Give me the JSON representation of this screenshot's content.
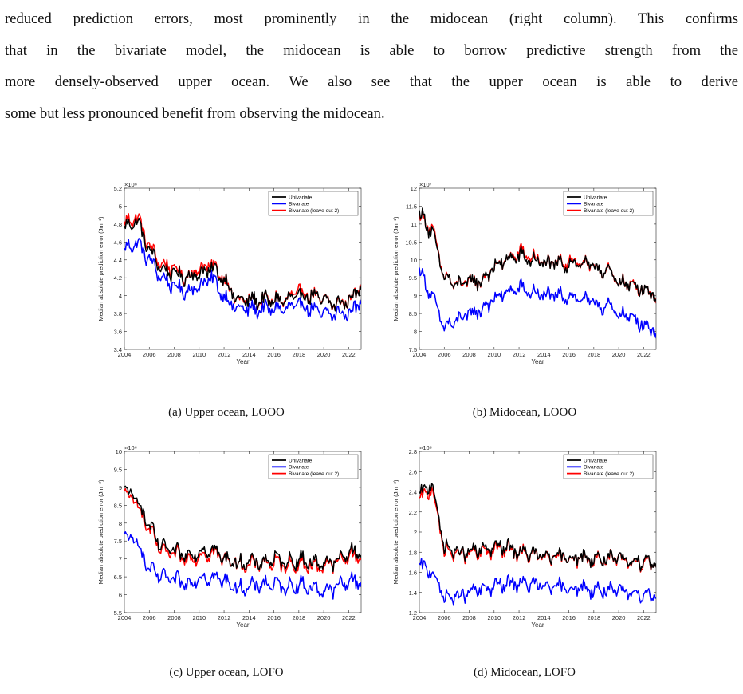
{
  "paragraph": {
    "lines": [
      "reduced prediction errors, most prominently in the midocean (right column). This confirms",
      "that in the bivariate model, the midocean is able to borrow predictive strength from the",
      "more densely-observed upper ocean. We also see that the upper ocean is able to derive",
      "some but less pronounced benefit from observing the midocean."
    ]
  },
  "colors": {
    "univariate": "#000000",
    "bivariate": "#0000ff",
    "bivariate_leave_out_2": "#ff0000",
    "axis": "#262626"
  },
  "chart_data": [
    {
      "type": "line",
      "caption": "(a) Upper ocean, LOOO",
      "ylabel": "Median absolute prediction error (Jm⁻²)",
      "xlabel": "Year",
      "exponent": "×10⁸",
      "xlim": [
        2004,
        2023
      ],
      "ylim": [
        3.4,
        5.2
      ],
      "xticks": [
        "2004",
        "2006",
        "2008",
        "2010",
        "2012",
        "2014",
        "2016",
        "2018",
        "2020",
        "2022"
      ],
      "yticks": [
        "3.4",
        "3.6",
        "3.8",
        "4",
        "4.2",
        "4.4",
        "4.6",
        "4.8",
        "5",
        "5.2"
      ],
      "legend": {
        "position": "top-right",
        "entries": [
          "Univariate",
          "Bivariate",
          "Bivariate (leave out 2)"
        ]
      },
      "x_breakpoints": [
        2004,
        2005,
        2006,
        2007,
        2008,
        2009,
        2010,
        2011,
        2012,
        2013,
        2014,
        2015,
        2016,
        2017,
        2018,
        2019,
        2020,
        2021,
        2022,
        2023
      ],
      "series": [
        {
          "name": "Univariate",
          "values": [
            4.75,
            4.85,
            4.5,
            4.3,
            4.25,
            4.2,
            4.25,
            4.3,
            4.2,
            3.95,
            3.95,
            3.95,
            3.95,
            3.95,
            4.0,
            4.0,
            3.95,
            3.9,
            3.95,
            4.1
          ]
        },
        {
          "name": "Bivariate",
          "values": [
            4.5,
            4.6,
            4.4,
            4.2,
            4.1,
            4.05,
            4.1,
            4.2,
            4.0,
            3.85,
            3.85,
            3.85,
            3.85,
            3.85,
            3.9,
            3.85,
            3.8,
            3.8,
            3.8,
            3.95
          ]
        },
        {
          "name": "Bivariate (leave out 2)",
          "values": [
            4.8,
            4.9,
            4.55,
            4.35,
            4.3,
            4.2,
            4.3,
            4.35,
            4.2,
            3.95,
            3.95,
            3.95,
            3.95,
            3.95,
            4.05,
            4.0,
            3.95,
            3.9,
            3.95,
            4.1
          ]
        }
      ]
    },
    {
      "type": "line",
      "caption": "(b) Midocean, LOOO",
      "ylabel": "Median absolute prediction error (Jm⁻²)",
      "xlabel": "Year",
      "exponent": "×10⁷",
      "xlim": [
        2004,
        2023
      ],
      "ylim": [
        7.5,
        12
      ],
      "xticks": [
        "2004",
        "2006",
        "2008",
        "2010",
        "2012",
        "2014",
        "2016",
        "2018",
        "2020",
        "2022"
      ],
      "yticks": [
        "7.5",
        "8",
        "8.5",
        "9",
        "9.5",
        "10",
        "10.5",
        "11",
        "11.5",
        "12"
      ],
      "legend": {
        "position": "top-right",
        "entries": [
          "Univariate",
          "Bivariate",
          "Bivariate (leave out 2)"
        ]
      },
      "x_breakpoints": [
        2004,
        2005,
        2006,
        2007,
        2008,
        2009,
        2010,
        2011,
        2012,
        2013,
        2014,
        2015,
        2016,
        2017,
        2018,
        2019,
        2020,
        2021,
        2022,
        2023
      ],
      "series": [
        {
          "name": "Univariate",
          "values": [
            11.3,
            10.8,
            9.5,
            9.3,
            9.4,
            9.4,
            9.8,
            10.0,
            10.1,
            10.0,
            9.9,
            9.9,
            9.9,
            9.9,
            9.8,
            9.7,
            9.4,
            9.3,
            9.2,
            9.0
          ]
        },
        {
          "name": "Bivariate",
          "values": [
            9.7,
            9.0,
            8.1,
            8.3,
            8.5,
            8.6,
            8.9,
            9.1,
            9.2,
            9.1,
            9.0,
            9.0,
            9.0,
            8.9,
            8.8,
            8.7,
            8.5,
            8.4,
            8.2,
            8.0
          ]
        },
        {
          "name": "Bivariate (leave out 2)",
          "values": [
            11.2,
            10.9,
            9.5,
            9.3,
            9.4,
            9.4,
            9.8,
            10.0,
            10.2,
            10.1,
            9.9,
            9.9,
            10.0,
            9.9,
            9.8,
            9.7,
            9.4,
            9.3,
            9.2,
            9.0
          ]
        }
      ]
    },
    {
      "type": "line",
      "caption": "(c) Upper ocean, LOFO",
      "ylabel": "Median absolute prediction error (Jm⁻²)",
      "xlabel": "Year",
      "exponent": "×10⁸",
      "xlim": [
        2004,
        2023
      ],
      "ylim": [
        5.5,
        10
      ],
      "xticks": [
        "2004",
        "2006",
        "2008",
        "2010",
        "2012",
        "2014",
        "2016",
        "2018",
        "2020",
        "2022"
      ],
      "yticks": [
        "5.5",
        "6",
        "6.5",
        "7",
        "7.5",
        "8",
        "8.5",
        "9",
        "9.5",
        "10"
      ],
      "legend": {
        "position": "top-right",
        "entries": [
          "Univariate",
          "Bivariate",
          "Bivariate (leave out 2)"
        ]
      },
      "x_breakpoints": [
        2004,
        2005,
        2006,
        2007,
        2008,
        2009,
        2010,
        2011,
        2012,
        2013,
        2014,
        2015,
        2016,
        2017,
        2018,
        2019,
        2020,
        2021,
        2022,
        2023
      ],
      "series": [
        {
          "name": "Univariate",
          "values": [
            8.9,
            8.7,
            7.9,
            7.3,
            7.2,
            7.1,
            7.2,
            7.3,
            7.0,
            6.9,
            6.9,
            6.9,
            7.0,
            6.9,
            7.0,
            6.9,
            6.9,
            6.9,
            7.2,
            7.2
          ]
        },
        {
          "name": "Bivariate",
          "values": [
            7.6,
            7.5,
            6.7,
            6.5,
            6.4,
            6.3,
            6.5,
            6.5,
            6.4,
            6.2,
            6.2,
            6.3,
            6.3,
            6.2,
            6.3,
            6.2,
            6.1,
            6.2,
            6.4,
            6.4
          ]
        },
        {
          "name": "Bivariate (leave out 2)",
          "values": [
            8.8,
            8.6,
            7.8,
            7.2,
            7.1,
            7.0,
            7.1,
            7.2,
            7.0,
            6.9,
            6.8,
            6.9,
            6.9,
            6.8,
            6.9,
            6.8,
            6.8,
            6.9,
            7.1,
            7.1
          ]
        }
      ]
    },
    {
      "type": "line",
      "caption": "(d) Midocean, LOFO",
      "ylabel": "Median absolute prediction error (Jm⁻²)",
      "xlabel": "Year",
      "exponent": "×10⁸",
      "xlim": [
        2004,
        2023
      ],
      "ylim": [
        1.2,
        2.8
      ],
      "xticks": [
        "2004",
        "2006",
        "2008",
        "2010",
        "2012",
        "2014",
        "2016",
        "2018",
        "2020",
        "2022"
      ],
      "yticks": [
        "1.2",
        "1.4",
        "1.6",
        "1.8",
        "2",
        "2.2",
        "2.4",
        "2.6",
        "2.8"
      ],
      "legend": {
        "position": "top-right",
        "entries": [
          "Univariate",
          "Bivariate",
          "Bivariate (leave out 2)"
        ]
      },
      "x_breakpoints": [
        2004,
        2005,
        2006,
        2007,
        2008,
        2009,
        2010,
        2011,
        2012,
        2013,
        2014,
        2015,
        2016,
        2017,
        2018,
        2019,
        2020,
        2021,
        2022,
        2023
      ],
      "series": [
        {
          "name": "Univariate",
          "values": [
            2.35,
            2.5,
            1.85,
            1.8,
            1.8,
            1.82,
            1.85,
            1.85,
            1.8,
            1.78,
            1.76,
            1.75,
            1.76,
            1.75,
            1.74,
            1.74,
            1.73,
            1.72,
            1.72,
            1.7
          ]
        },
        {
          "name": "Bivariate",
          "values": [
            1.65,
            1.62,
            1.35,
            1.35,
            1.4,
            1.43,
            1.46,
            1.48,
            1.5,
            1.48,
            1.46,
            1.45,
            1.45,
            1.44,
            1.43,
            1.42,
            1.41,
            1.41,
            1.38,
            1.37
          ]
        },
        {
          "name": "Bivariate (leave out 2)",
          "values": [
            2.3,
            2.45,
            1.82,
            1.78,
            1.78,
            1.8,
            1.83,
            1.83,
            1.8,
            1.77,
            1.75,
            1.74,
            1.75,
            1.74,
            1.73,
            1.73,
            1.72,
            1.71,
            1.7,
            1.69
          ]
        }
      ]
    }
  ]
}
